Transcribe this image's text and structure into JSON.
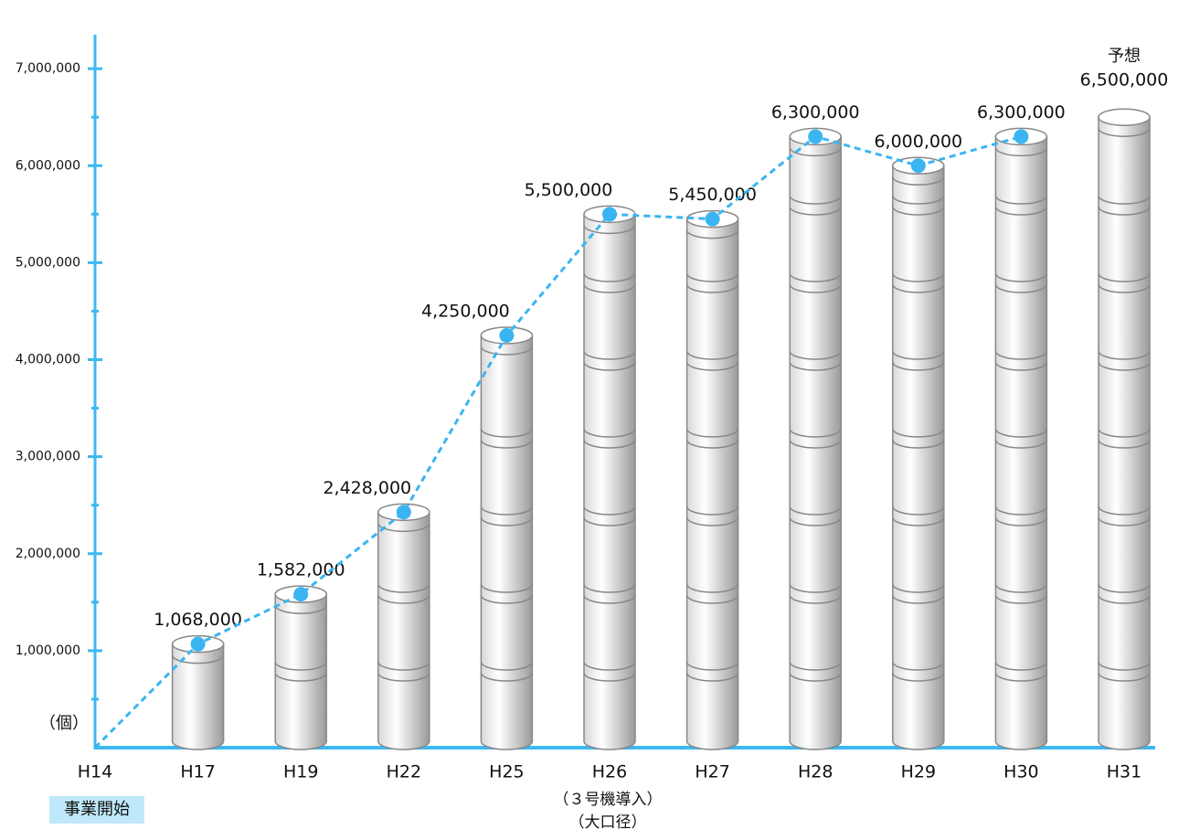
{
  "chart_data": {
    "type": "cylinder-bar-line",
    "categories": [
      "H14",
      "H17",
      "H19",
      "H22",
      "H25",
      "H26",
      "H27",
      "H28",
      "H29",
      "H30",
      "H31"
    ],
    "values": [
      null,
      1068000,
      1582000,
      2428000,
      4250000,
      5500000,
      5450000,
      6300000,
      6000000,
      6300000,
      6500000
    ],
    "value_labels": [
      null,
      "1,068,000",
      "1,582,000",
      "2,428,000",
      "4,250,000",
      "5,500,000",
      "5,450,000",
      "6,300,000",
      "6,000,000",
      "6,300,000",
      "6,500,000"
    ],
    "line_values": [
      0,
      1068000,
      1582000,
      2428000,
      4250000,
      5500000,
      5450000,
      6300000,
      6000000,
      6300000,
      null
    ],
    "line_color": "#3ab5f2",
    "axis_color": "#3db8f0",
    "ylim": [
      0,
      7350000
    ],
    "yticks": [
      {
        "value": 1000000,
        "label": "1,000,000"
      },
      {
        "value": 2000000,
        "label": "2,000,000"
      },
      {
        "value": 3000000,
        "label": "3,000,000"
      },
      {
        "value": 4000000,
        "label": "4,000,000"
      },
      {
        "value": 5000000,
        "label": "5,000,000"
      },
      {
        "value": 6000000,
        "label": "6,000,000"
      },
      {
        "value": 7000000,
        "label": "7,000,000"
      }
    ],
    "minor_yticks": [
      500000,
      1500000,
      2500000,
      3500000,
      4500000,
      5500000,
      6500000
    ],
    "unit_label": "（個）",
    "forecast_label": "予想",
    "start_note": "事業開始",
    "h26_note": [
      "（３号機導入）",
      "（大口径）"
    ]
  }
}
